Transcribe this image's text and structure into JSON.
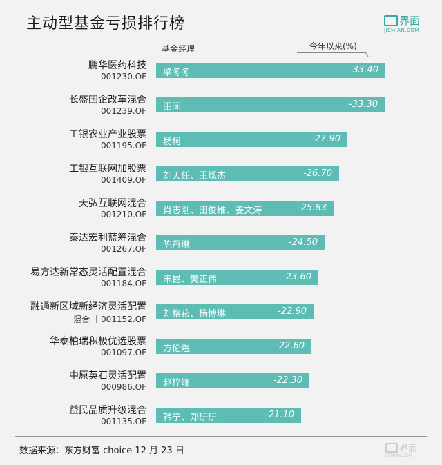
{
  "header": {
    "title": "主动型基金亏损排行榜",
    "logo_cn": "界面",
    "logo_en": "JIEMIAN.COM"
  },
  "columns": {
    "manager": "基金经理",
    "ytd": "今年以来(%)"
  },
  "chart_data": {
    "type": "bar",
    "orientation": "horizontal",
    "title": "主动型基金亏损排行榜",
    "value_label": "今年以来(%)",
    "xlim": [
      0,
      -33.4
    ],
    "colors": {
      "bar": "#5dbdb5"
    },
    "rows": [
      {
        "fund": "鹏华医药科技",
        "code": "001230.OF",
        "manager": "梁冬冬",
        "value": -33.4,
        "label": "-33.40"
      },
      {
        "fund": "长盛国企改革混合",
        "code": "001239.OF",
        "manager": "田间",
        "value": -33.3,
        "label": "-33.30"
      },
      {
        "fund": "工银农业产业股票",
        "code": "001195.OF",
        "manager": "杨柯",
        "value": -27.9,
        "label": "-27.90"
      },
      {
        "fund": "工银互联网加股票",
        "code": "001409.OF",
        "manager": "刘天任、王烁杰",
        "value": -26.7,
        "label": "-26.70"
      },
      {
        "fund": "天弘互联网混合",
        "code": "001210.OF",
        "manager": "肖志刚、田俊维、姜文涛",
        "value": -25.83,
        "label": "-25.83"
      },
      {
        "fund": "泰达宏利蓝筹混合",
        "code": "001267.OF",
        "manager": "陈丹琳",
        "value": -24.5,
        "label": "-24.50"
      },
      {
        "fund": "易方达新常态灵活配置混合",
        "code": "001184.OF",
        "manager": "宋昆、樊正伟",
        "value": -23.6,
        "label": "-23.60"
      },
      {
        "fund": "融通新区域新经济灵活配置",
        "code": "混合 丨001152.OF",
        "manager": "刘格菘、杨博琳",
        "value": -22.9,
        "label": "-22.90"
      },
      {
        "fund": "华泰柏瑞积极优选股票",
        "code": "001097.OF",
        "manager": "方伦煜",
        "value": -22.6,
        "label": "-22.60"
      },
      {
        "fund": "中原英石灵活配置",
        "code": "000986.OF",
        "manager": "赵梓峰",
        "value": -22.3,
        "label": "-22.30"
      },
      {
        "fund": "益民品质升级混合",
        "code": "001135.OF",
        "manager": "韩宁、郑研研",
        "value": -21.1,
        "label": "-21.10"
      }
    ]
  },
  "footer": {
    "source": "数据来源：东方财富 choice 12 月 23 日",
    "logo_cn": "界面",
    "logo_en": "JIEMIAN.COM"
  }
}
